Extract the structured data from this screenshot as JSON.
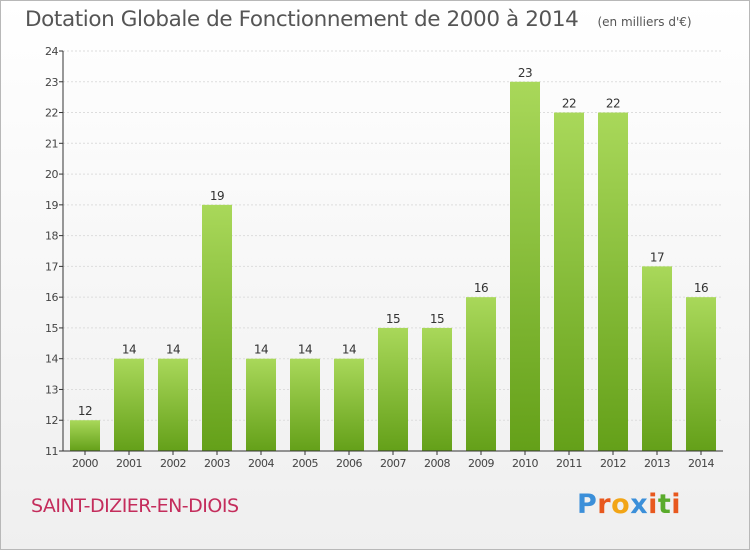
{
  "title": "Dotation Globale de Fonctionnement de 2000 à 2014",
  "subtitle": "(en milliers d'€)",
  "commune": "SAINT-DIZIER-EN-DIOIS",
  "logo": {
    "text": "Proxiti",
    "colors": [
      "#3b8fd9",
      "#e8581e",
      "#f2a516",
      "#3b8fd9",
      "#e8581e",
      "#5aab2c",
      "#e8581e"
    ]
  },
  "colors": {
    "bar_light": "#a9d85a",
    "bar_dark": "#64a019",
    "axis": "#333333",
    "grid": "#dddddd",
    "commune": "#c42d5c"
  },
  "chart_data": {
    "type": "bar",
    "title": "Dotation Globale de Fonctionnement de 2000 à 2014",
    "xlabel": "",
    "ylabel": "",
    "categories": [
      "2000",
      "2001",
      "2002",
      "2003",
      "2004",
      "2005",
      "2006",
      "2007",
      "2008",
      "2009",
      "2010",
      "2011",
      "2012",
      "2013",
      "2014"
    ],
    "values": [
      12,
      14,
      14,
      19,
      14,
      14,
      14,
      15,
      15,
      16,
      23,
      22,
      22,
      17,
      16
    ],
    "ylim": [
      11,
      24
    ],
    "yticks": [
      11,
      12,
      13,
      14,
      15,
      16,
      17,
      18,
      19,
      20,
      21,
      22,
      23,
      24
    ],
    "grid": true,
    "legend": "none"
  }
}
